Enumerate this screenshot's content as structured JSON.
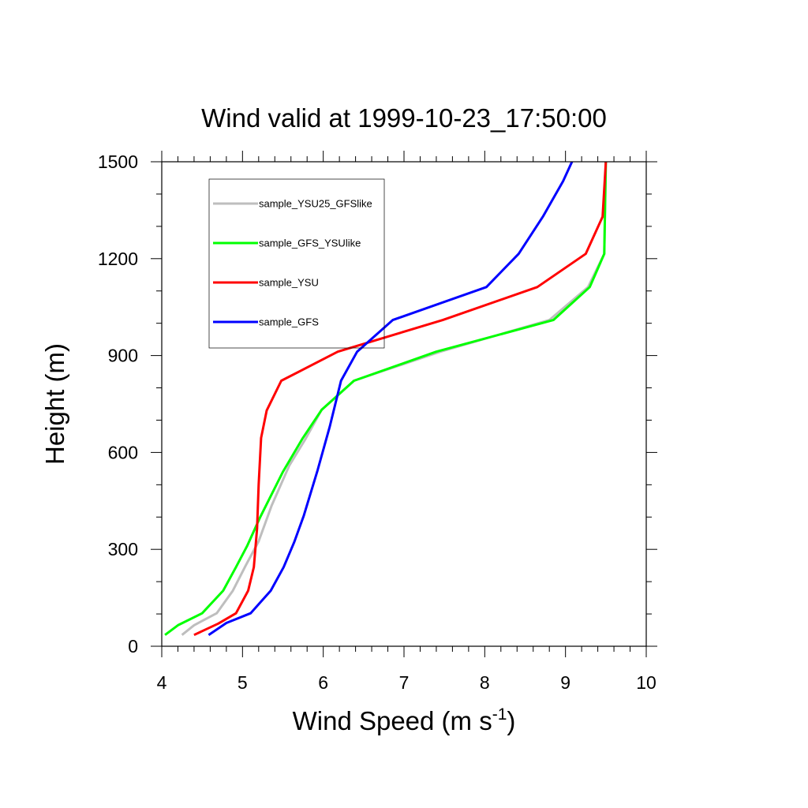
{
  "chart_data": {
    "type": "line",
    "title": "Wind valid at 1999-10-23_17:50:00",
    "xlabel": "Wind Speed (m s",
    "xlabel_sup": "-1",
    "xlabel_suffix": ")",
    "ylabel": "Height (m)",
    "xlim": [
      4,
      10
    ],
    "ylim": [
      0,
      1500
    ],
    "xticks": [
      "4",
      "5",
      "6",
      "7",
      "8",
      "9",
      "10"
    ],
    "yticks": [
      "0",
      "300",
      "600",
      "900",
      "1200",
      "1500"
    ],
    "legend_position": "top-left",
    "series": [
      {
        "name": "sample_YSU25_GFSlike",
        "color": "#bebebe",
        "points": [
          [
            4.25,
            35
          ],
          [
            4.4,
            65
          ],
          [
            4.68,
            102
          ],
          [
            4.88,
            172
          ],
          [
            5.04,
            250
          ],
          [
            5.2,
            325
          ],
          [
            5.36,
            435
          ],
          [
            5.58,
            560
          ],
          [
            5.78,
            642
          ],
          [
            5.98,
            732
          ],
          [
            6.38,
            822
          ],
          [
            7.45,
            912
          ],
          [
            8.8,
            1010
          ],
          [
            9.28,
            1112
          ],
          [
            9.48,
            1215
          ],
          [
            9.5,
            1500
          ]
        ]
      },
      {
        "name": "sample_GFS_YSUlike",
        "color": "#00ff00",
        "points": [
          [
            4.04,
            35
          ],
          [
            4.2,
            65
          ],
          [
            4.5,
            102
          ],
          [
            4.76,
            172
          ],
          [
            4.92,
            245
          ],
          [
            5.06,
            312
          ],
          [
            5.22,
            400
          ],
          [
            5.5,
            540
          ],
          [
            5.74,
            642
          ],
          [
            5.98,
            732
          ],
          [
            6.38,
            822
          ],
          [
            7.4,
            912
          ],
          [
            8.85,
            1010
          ],
          [
            9.3,
            1112
          ],
          [
            9.48,
            1215
          ],
          [
            9.5,
            1500
          ]
        ]
      },
      {
        "name": "sample_YSU",
        "color": "#ff0000",
        "points": [
          [
            4.4,
            35
          ],
          [
            4.7,
            70
          ],
          [
            4.92,
            102
          ],
          [
            5.07,
            172
          ],
          [
            5.14,
            245
          ],
          [
            5.18,
            365
          ],
          [
            5.2,
            500
          ],
          [
            5.23,
            645
          ],
          [
            5.3,
            730
          ],
          [
            5.48,
            822
          ],
          [
            6.18,
            912
          ],
          [
            7.48,
            1010
          ],
          [
            8.65,
            1112
          ],
          [
            9.25,
            1215
          ],
          [
            9.46,
            1330
          ],
          [
            9.5,
            1500
          ]
        ]
      },
      {
        "name": "sample_GFS",
        "color": "#0000ff",
        "points": [
          [
            4.58,
            35
          ],
          [
            4.8,
            72
          ],
          [
            5.1,
            102
          ],
          [
            5.35,
            172
          ],
          [
            5.51,
            245
          ],
          [
            5.64,
            322
          ],
          [
            5.76,
            405
          ],
          [
            5.93,
            545
          ],
          [
            6.08,
            680
          ],
          [
            6.22,
            822
          ],
          [
            6.42,
            912
          ],
          [
            6.86,
            1010
          ],
          [
            8.02,
            1112
          ],
          [
            8.42,
            1215
          ],
          [
            8.72,
            1330
          ],
          [
            8.97,
            1440
          ],
          [
            9.08,
            1500
          ]
        ]
      }
    ]
  }
}
